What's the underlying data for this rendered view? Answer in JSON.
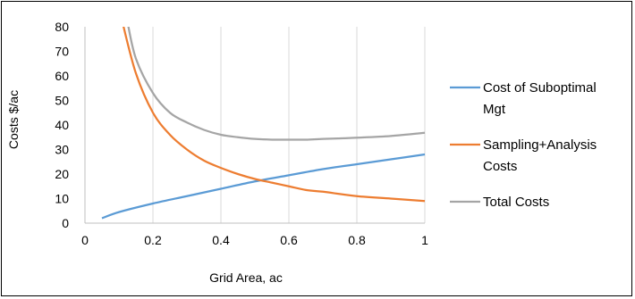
{
  "chart_data": {
    "type": "line",
    "xlabel": "Grid Area, ac",
    "ylabel": "Costs $/ac",
    "xlim": [
      0,
      1
    ],
    "ylim": [
      0,
      80
    ],
    "x_ticks": [
      "0",
      "0.2",
      "0.4",
      "0.6",
      "0.8",
      "1"
    ],
    "y_ticks": [
      "0",
      "10",
      "20",
      "30",
      "40",
      "50",
      "60",
      "70",
      "80"
    ],
    "grid": "vertical",
    "legend_position": "right",
    "series": [
      {
        "name": "Cost of Suboptimal Mgt",
        "legend_lines": [
          "Cost of Suboptimal",
          "Mgt"
        ],
        "color": "#5b9bd5",
        "x": [
          0.05,
          0.1,
          0.2,
          0.3,
          0.4,
          0.5,
          0.6,
          0.7,
          0.8,
          0.9,
          1.0
        ],
        "y": [
          2,
          4.5,
          8,
          11,
          14,
          17,
          19.5,
          22,
          24,
          26,
          28
        ]
      },
      {
        "name": "Sampling+Analysis Costs",
        "legend_lines": [
          "Sampling+Analysis",
          "Costs"
        ],
        "color": "#ed7d31",
        "x": [
          0.11,
          0.15,
          0.2,
          0.25,
          0.3,
          0.35,
          0.4,
          0.45,
          0.5,
          0.55,
          0.6,
          0.65,
          0.7,
          0.8,
          0.9,
          1.0
        ],
        "y": [
          82,
          61,
          45,
          36,
          30,
          25.5,
          22.5,
          20,
          18,
          16.5,
          15,
          13.5,
          12.8,
          11,
          10,
          9
        ]
      },
      {
        "name": "Total Costs",
        "legend_lines": [
          "Total Costs"
        ],
        "color": "#a5a5a5",
        "x": [
          0.125,
          0.15,
          0.2,
          0.25,
          0.3,
          0.35,
          0.4,
          0.45,
          0.5,
          0.55,
          0.6,
          0.65,
          0.7,
          0.8,
          0.9,
          1.0
        ],
        "y": [
          82,
          67,
          53,
          45,
          41,
          38,
          36,
          35,
          34.3,
          34,
          34,
          34,
          34.3,
          34.8,
          35.5,
          36.8
        ]
      }
    ]
  }
}
